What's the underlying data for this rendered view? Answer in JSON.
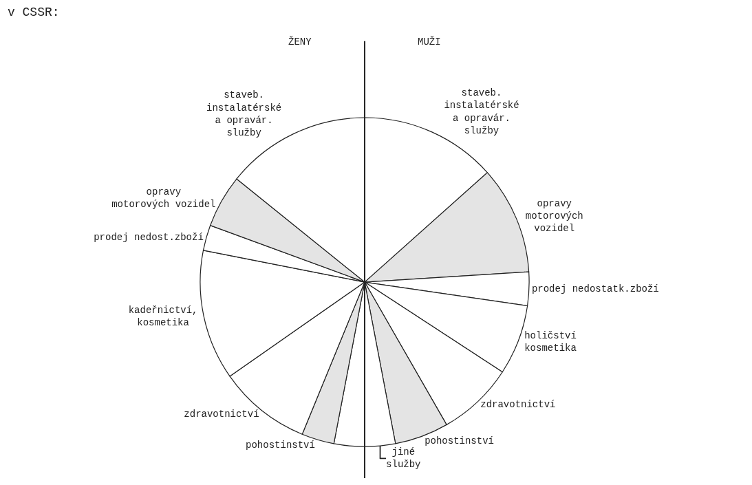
{
  "chart_data": {
    "type": "pie",
    "title": "v CSSR:",
    "annotations": [
      "ŽENY",
      "MUŽI"
    ],
    "categories": [
      "staveb.\ninstalatérské\na opravár.\nslužby",
      "opravy\nmotorových\nvozidel",
      "prodej nedostatk.zboží",
      "holičství\nkosmetika",
      "zdravotnictví",
      "pohostinství",
      "jiné\nslužby",
      null,
      "pohostinství",
      "zdravotnictví",
      "kadeřnictví,\nkosmetika",
      "prodej nedost.zboží",
      "opravy\nmotorových vozidel",
      "staveb.\ninstalatérské\na opravár.\nslužby"
    ],
    "values": [
      13.4,
      10.6,
      3.3,
      6.9,
      7.5,
      5.3,
      3.0,
      3.0,
      3.2,
      9.1,
      12.8,
      2.5,
      5.2,
      14.2
    ],
    "colors": [
      "#ffffff",
      "#e4e4e4",
      "#ffffff",
      "#ffffff",
      "#ffffff",
      "#e4e4e4",
      "#ffffff",
      "#ffffff",
      "#e4e4e4",
      "#ffffff",
      "#ffffff",
      "#ffffff",
      "#e4e4e4",
      "#ffffff"
    ]
  }
}
